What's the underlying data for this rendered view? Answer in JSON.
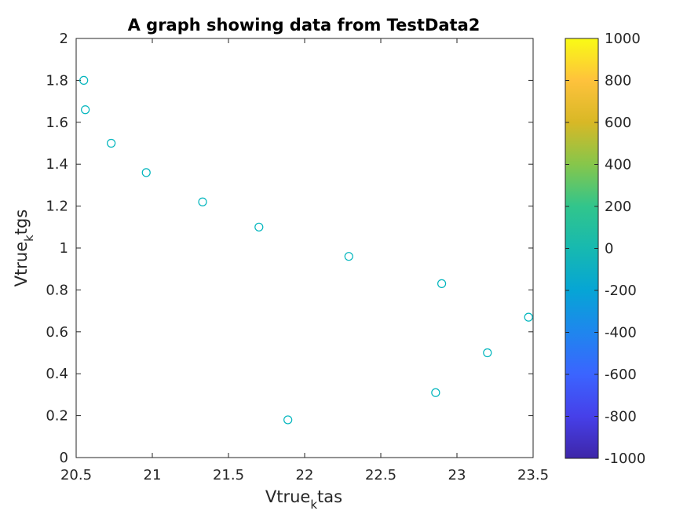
{
  "chart_data": {
    "type": "scatter",
    "title": "A graph showing data from TestData2",
    "xlabel": {
      "base": "Vtrue",
      "subscript": "k",
      "suffix": "tas"
    },
    "ylabel": {
      "base": "Vtrue",
      "subscript": "k",
      "suffix": "tgs"
    },
    "xlim": [
      20.5,
      23.5
    ],
    "ylim": [
      0,
      2
    ],
    "xticks": [
      "20.5",
      "21",
      "21.5",
      "22",
      "22.5",
      "23",
      "23.5"
    ],
    "yticks": [
      "0",
      "0.2",
      "0.4",
      "0.6",
      "0.8",
      "1",
      "1.2",
      "1.4",
      "1.6",
      "1.8",
      "2"
    ],
    "grid": false,
    "marker": "circle-open",
    "marker_color": "#00b5bd",
    "points": [
      {
        "x": 20.55,
        "y": 1.8
      },
      {
        "x": 20.56,
        "y": 1.66
      },
      {
        "x": 20.73,
        "y": 1.5
      },
      {
        "x": 20.96,
        "y": 1.36
      },
      {
        "x": 21.33,
        "y": 1.22
      },
      {
        "x": 21.7,
        "y": 1.1
      },
      {
        "x": 21.89,
        "y": 0.18
      },
      {
        "x": 22.29,
        "y": 0.96
      },
      {
        "x": 22.86,
        "y": 0.31
      },
      {
        "x": 22.9,
        "y": 0.83
      },
      {
        "x": 23.2,
        "y": 0.5
      },
      {
        "x": 23.47,
        "y": 0.67
      }
    ],
    "colorbar": {
      "placement": "right",
      "colormap": "parula",
      "range": [
        -1000,
        1000
      ],
      "ticks": [
        "-1000",
        "-800",
        "-600",
        "-400",
        "-200",
        "0",
        "200",
        "400",
        "600",
        "800",
        "1000"
      ],
      "stops": [
        "#3e26a8",
        "#4640e9",
        "#3b64ff",
        "#1f86ee",
        "#06a5d5",
        "#17b9b0",
        "#31c58c",
        "#86c64b",
        "#d8b826",
        "#fec23c",
        "#f9fb15"
      ]
    }
  }
}
